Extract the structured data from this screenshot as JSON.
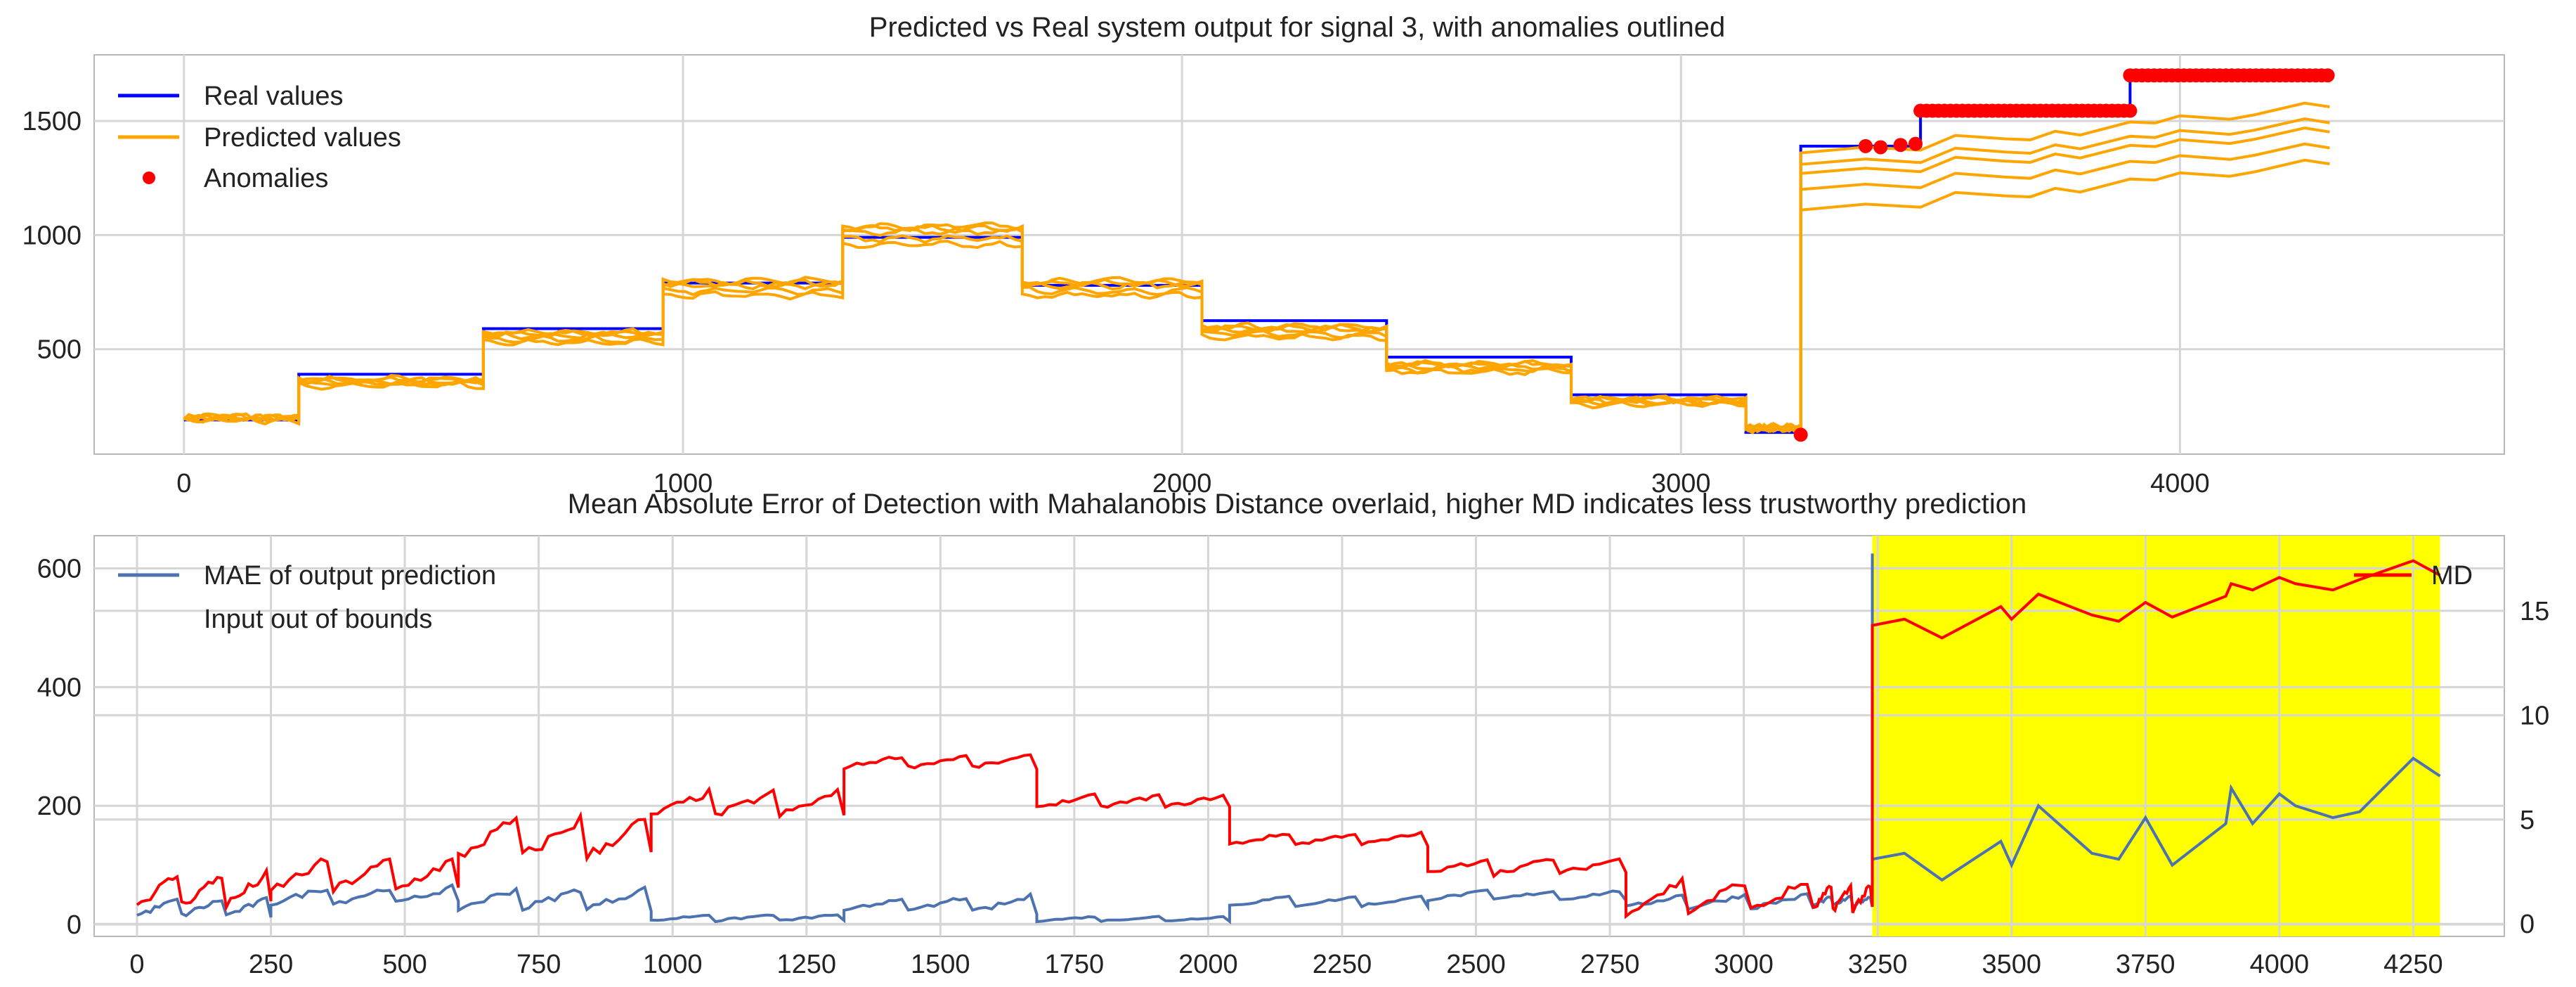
{
  "colors": {
    "real": "#0000ff",
    "predicted": "#ffa500",
    "anomaly": "#ff0000",
    "mae": "#4c72b0",
    "md": "#ff0000",
    "out_of_bounds": "#ffff00"
  },
  "chart_data": [
    {
      "type": "line",
      "title": "Predicted vs Real system output for signal 3, with anomalies outlined",
      "xlim": [
        -180,
        4650
      ],
      "ylim": [
        40,
        1790
      ],
      "xticks": [
        0,
        1000,
        2000,
        3000,
        4000
      ],
      "yticks": [
        500,
        1000,
        1500
      ],
      "grid": true,
      "legend": {
        "placement": "top-left",
        "entries": [
          "Real values",
          "Predicted values",
          "Anomalies"
        ]
      },
      "series": [
        {
          "name": "Real values",
          "steps": [
            [
              0,
              230,
              190
            ],
            [
              230,
              600,
              390
            ],
            [
              600,
              960,
              590
            ],
            [
              960,
              1320,
              790
            ],
            [
              1320,
              1680,
              990
            ],
            [
              1680,
              2040,
              780
            ],
            [
              2040,
              2410,
              625
            ],
            [
              2410,
              2780,
              465
            ],
            [
              2780,
              3130,
              300
            ],
            [
              3130,
              3240,
              135
            ],
            [
              3240,
              3370,
              1390
            ],
            [
              3370,
              3480,
              1390
            ],
            [
              3480,
              3900,
              1545
            ],
            [
              3900,
              4300,
              1700
            ]
          ]
        },
        {
          "name": "Predicted values",
          "note": "five overlapping prediction traces",
          "offsets": [
            0,
            -25,
            -45,
            20,
            10
          ],
          "steps": [
            [
              0,
              230,
              200
            ],
            [
              230,
              600,
              360
            ],
            [
              600,
              960,
              560
            ],
            [
              960,
              1320,
              780
            ],
            [
              1320,
              1680,
              1015
            ],
            [
              1680,
              2040,
              780
            ],
            [
              2040,
              2410,
              585
            ],
            [
              2410,
              2780,
              425
            ],
            [
              2780,
              3130,
              275
            ],
            [
              3130,
              3240,
              155
            ]
          ],
          "tail_lines": [
            {
              "start": 1360,
              "end": 1520
            },
            {
              "start": 1310,
              "end": 1450
            },
            {
              "start": 1270,
              "end": 1410
            },
            {
              "start": 1200,
              "end": 1340
            },
            {
              "start": 1110,
              "end": 1270
            }
          ]
        },
        {
          "name": "Anomalies",
          "points": [
            [
              3240,
              125
            ],
            [
              3370,
              1390
            ],
            [
              3400,
              1385
            ],
            [
              3440,
              1395
            ],
            [
              3470,
              1400
            ]
          ],
          "segments": [
            [
              3480,
              3900,
              1545
            ],
            [
              3900,
              4300,
              1700
            ]
          ]
        }
      ]
    },
    {
      "type": "line",
      "title": "Mean Absolute Error of Detection with Mahalanobis Distance overlaid, higher MD indicates less trustworthy prediction",
      "xlim": [
        -80,
        4420
      ],
      "ylim": [
        -20,
        655
      ],
      "y2lim": [
        -0.6,
        18.6
      ],
      "xticks": [
        0,
        250,
        500,
        750,
        1000,
        1250,
        1500,
        1750,
        2000,
        2250,
        2500,
        2750,
        3000,
        3250,
        3500,
        3750,
        4000,
        4250
      ],
      "yticks": [
        0,
        200,
        400,
        600
      ],
      "y2ticks": [
        0,
        5,
        10,
        15
      ],
      "grid": true,
      "legend": {
        "placement": "top-left",
        "entries": [
          "MAE of output prediction",
          "Input out of bounds"
        ],
        "right_entries": [
          "MD"
        ]
      },
      "shaded_region": {
        "label": "Input out of bounds",
        "x": [
          3240,
          4300
        ]
      },
      "series": [
        {
          "name": "MAE of output prediction",
          "axis": "left",
          "steps": [
            [
              0,
              250,
              30,
              15
            ],
            [
              250,
              600,
              50,
              15
            ],
            [
              600,
              960,
              45,
              18
            ],
            [
              960,
              1320,
              12,
              6
            ],
            [
              1320,
              1680,
              35,
              15
            ],
            [
              1680,
              2040,
              10,
              4
            ],
            [
              2040,
              2410,
              40,
              8
            ],
            [
              2410,
              2780,
              50,
              8
            ],
            [
              2780,
              3130,
              40,
              12
            ],
            [
              3130,
              3240,
              40,
              8
            ]
          ],
          "spike": {
            "x": 3240,
            "y": 625
          },
          "after": [
            [
              3240,
              110
            ],
            [
              3300,
              120
            ],
            [
              3370,
              75
            ],
            [
              3480,
              140
            ],
            [
              3500,
              100
            ],
            [
              3550,
              200
            ],
            [
              3650,
              120
            ],
            [
              3700,
              110
            ],
            [
              3750,
              180
            ],
            [
              3800,
              100
            ],
            [
              3900,
              170
            ],
            [
              3910,
              230
            ],
            [
              3950,
              170
            ],
            [
              4000,
              220
            ],
            [
              4030,
              200
            ],
            [
              4100,
              180
            ],
            [
              4150,
              190
            ],
            [
              4250,
              280
            ],
            [
              4300,
              250
            ]
          ]
        },
        {
          "name": "MD",
          "axis": "right",
          "steps": [
            [
              0,
              250,
              1.7,
              0.8
            ],
            [
              250,
              600,
              2.4,
              0.8
            ],
            [
              600,
              960,
              4.2,
              1.0
            ],
            [
              960,
              1320,
              5.8,
              0.6
            ],
            [
              1320,
              1680,
              7.8,
              0.3
            ],
            [
              1680,
              2040,
              5.9,
              0.3
            ],
            [
              2040,
              2410,
              4.1,
              0.3
            ],
            [
              2410,
              2780,
              2.8,
              0.4
            ],
            [
              2780,
              3130,
              1.4,
              0.8
            ],
            [
              3130,
              3240,
              1.3,
              0.6
            ]
          ],
          "after": [
            [
              3240,
              14.3
            ],
            [
              3300,
              14.6
            ],
            [
              3370,
              13.7
            ],
            [
              3480,
              15.2
            ],
            [
              3500,
              14.6
            ],
            [
              3550,
              15.8
            ],
            [
              3650,
              14.8
            ],
            [
              3700,
              14.5
            ],
            [
              3750,
              15.4
            ],
            [
              3800,
              14.7
            ],
            [
              3900,
              15.7
            ],
            [
              3910,
              16.3
            ],
            [
              3950,
              16.0
            ],
            [
              4000,
              16.6
            ],
            [
              4030,
              16.3
            ],
            [
              4100,
              16.0
            ],
            [
              4150,
              16.5
            ],
            [
              4250,
              17.4
            ],
            [
              4300,
              16.7
            ]
          ]
        }
      ]
    }
  ]
}
